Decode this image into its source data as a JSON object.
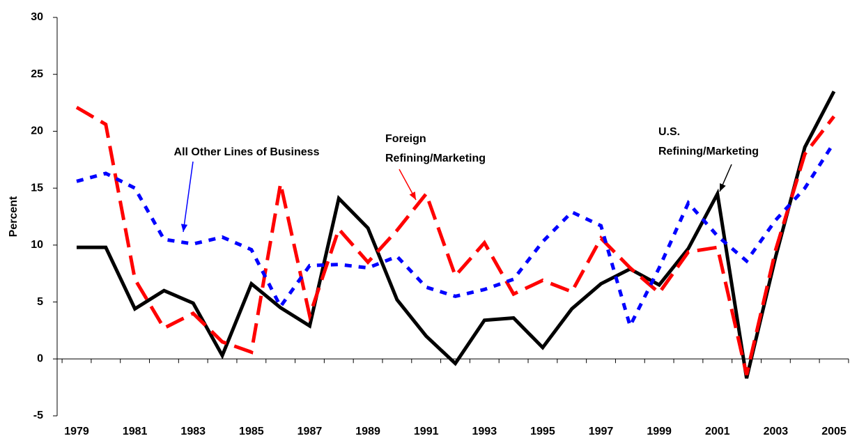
{
  "chart_data": {
    "type": "line",
    "y_label": "Percent",
    "categories": [
      "1979",
      null,
      "1981",
      null,
      "1983",
      null,
      "1985",
      null,
      "1987",
      null,
      "1989",
      null,
      "1991",
      null,
      "1993",
      null,
      "1995",
      null,
      "1997",
      null,
      "1999",
      null,
      "2001",
      null,
      "2003",
      null,
      "2005"
    ],
    "series": [
      {
        "name": "U.S. Refining/Marketing",
        "color": "#000000",
        "dash": "solid",
        "values": [
          9.8,
          9.8,
          4.4,
          6.0,
          4.9,
          0.3,
          6.6,
          4.5,
          2.9,
          14.1,
          11.5,
          5.2,
          2.0,
          -0.4,
          3.4,
          3.6,
          1.0,
          4.4,
          6.6,
          7.9,
          6.5,
          9.7,
          14.5,
          -1.7,
          9.0,
          18.6,
          23.5
        ]
      },
      {
        "name": "Foreign Refining/Marketing",
        "color": "#ff0000",
        "dash": "dashed",
        "values": [
          22.1,
          20.6,
          7.0,
          2.7,
          4.0,
          1.5,
          0.6,
          15.4,
          3.8,
          11.4,
          8.5,
          11.3,
          14.5,
          7.3,
          10.2,
          5.7,
          6.9,
          5.9,
          10.6,
          8.0,
          5.8,
          9.4,
          9.8,
          -1.4,
          9.6,
          18.0,
          21.3
        ]
      },
      {
        "name": "All Other Lines of Business",
        "color": "#0000ff",
        "dash": "dotted",
        "values": [
          15.6,
          16.3,
          15.0,
          10.5,
          10.1,
          10.7,
          9.6,
          4.6,
          8.2,
          8.3,
          8.0,
          9.0,
          6.3,
          5.5,
          6.1,
          7.0,
          10.3,
          12.9,
          11.7,
          2.9,
          8.0,
          13.7,
          10.8,
          8.6,
          12.2,
          15.0,
          19.0
        ]
      }
    ],
    "annotations": [
      {
        "lines": [
          "All Other Lines of Business"
        ],
        "color": "#0000ff"
      },
      {
        "lines": [
          "Foreign",
          "Refining/Marketing"
        ],
        "color": "#ff0000"
      },
      {
        "lines": [
          "U.S.",
          "Refining/Marketing"
        ],
        "color": "#000000"
      }
    ],
    "ylim": [
      -5,
      30
    ],
    "yticks": [
      -5,
      0,
      5,
      10,
      15,
      20,
      25,
      30
    ]
  }
}
